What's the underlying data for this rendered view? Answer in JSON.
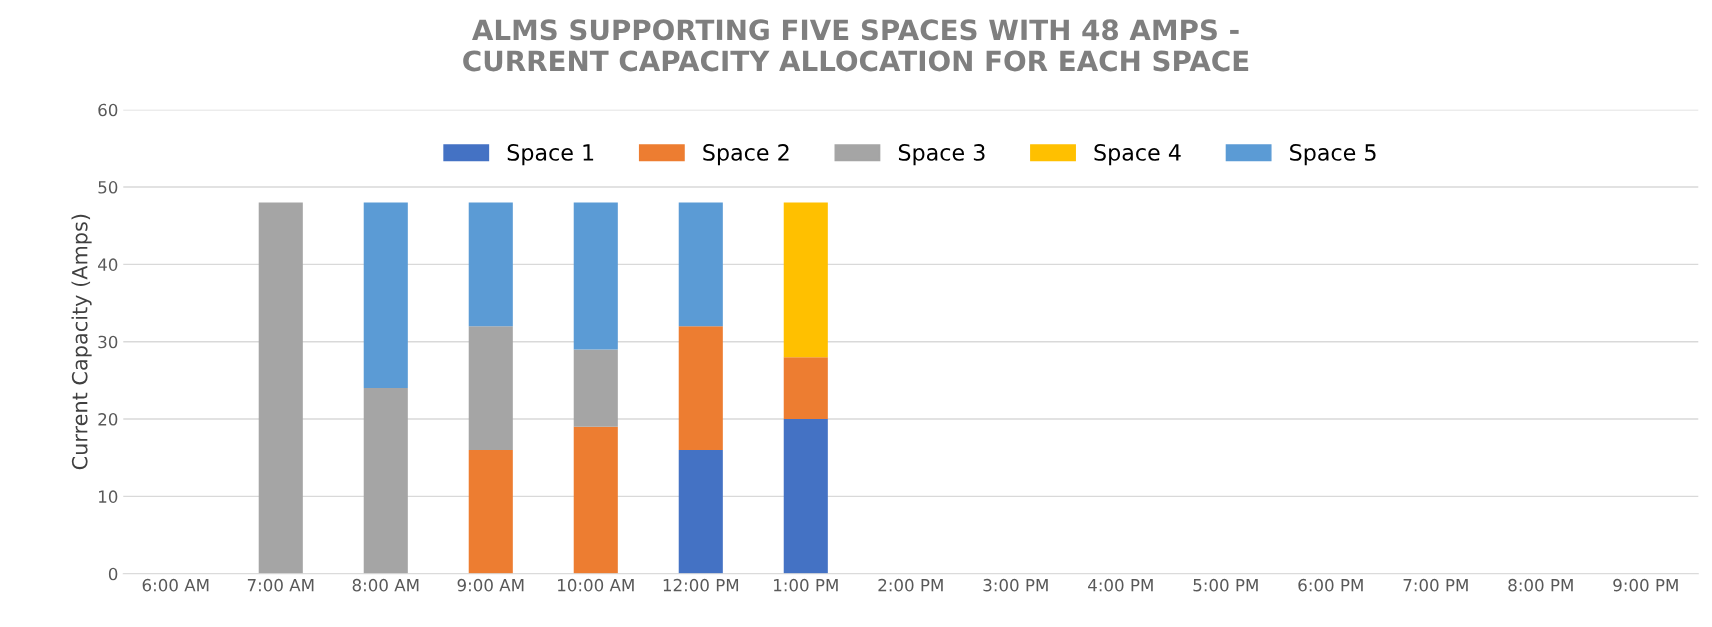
{
  "chart_data": {
    "type": "bar",
    "stacked": true,
    "title": "ALMS SUPPORTING FIVE SPACES WITH 48 AMPS -\nCURRENT CAPACITY ALLOCATION FOR EACH SPACE",
    "ylabel": "Current Capacity (Amps)",
    "categories": [
      "6:00 AM",
      "7:00 AM",
      "8:00 AM",
      "9:00 AM",
      "10:00 AM",
      "12:00 PM",
      "1:00 PM",
      "2:00 PM",
      "3:00 PM",
      "4:00 PM",
      "5:00 PM",
      "6:00 PM",
      "7:00 PM",
      "8:00 PM",
      "9:00 PM"
    ],
    "series": [
      {
        "name": "Space 1",
        "color": "#4472c4",
        "values": [
          null,
          null,
          null,
          null,
          null,
          16,
          20,
          null,
          null,
          null,
          null,
          null,
          null,
          null,
          null
        ]
      },
      {
        "name": "Space 2",
        "color": "#ed7d31",
        "values": [
          null,
          null,
          null,
          16,
          19,
          16,
          8,
          null,
          null,
          null,
          null,
          null,
          null,
          null,
          null
        ]
      },
      {
        "name": "Space 3",
        "color": "#a5a5a5",
        "values": [
          null,
          48,
          24,
          16,
          10,
          null,
          null,
          null,
          null,
          null,
          null,
          null,
          null,
          null,
          null
        ]
      },
      {
        "name": "Space 4",
        "color": "#ffc000",
        "values": [
          null,
          null,
          null,
          null,
          null,
          null,
          20,
          null,
          null,
          null,
          null,
          null,
          null,
          null,
          null
        ]
      },
      {
        "name": "Space 5",
        "color": "#5b9bd5",
        "values": [
          null,
          null,
          24,
          16,
          19,
          16,
          null,
          null,
          null,
          null,
          null,
          null,
          null,
          null,
          null
        ]
      }
    ],
    "ylim": [
      0,
      60
    ],
    "yticks": [
      0,
      10,
      20,
      30,
      40,
      50,
      60
    ],
    "grid": "y",
    "legend": "top"
  }
}
